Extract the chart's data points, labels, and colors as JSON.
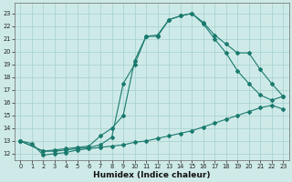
{
  "xlabel": "Humidex (Indice chaleur)",
  "bg_color": "#ceeae8",
  "grid_color": "#aad4d0",
  "line_color": "#1a7a6e",
  "line1_x": [
    0,
    1,
    2,
    3,
    4,
    5,
    6,
    7,
    8,
    9,
    10,
    11,
    12,
    13,
    14,
    15,
    16,
    17,
    18,
    19,
    20,
    21,
    22,
    23
  ],
  "line1_y": [
    13.0,
    12.8,
    11.9,
    12.0,
    12.1,
    12.3,
    12.4,
    12.5,
    12.6,
    12.7,
    12.9,
    13.0,
    13.2,
    13.4,
    13.6,
    13.8,
    14.1,
    14.4,
    14.7,
    15.0,
    15.3,
    15.6,
    15.8,
    15.5
  ],
  "line2_x": [
    0,
    2,
    3,
    4,
    5,
    6,
    7,
    8,
    9,
    10,
    11,
    12,
    13,
    14,
    15,
    16,
    17,
    18,
    19,
    20,
    21,
    22,
    23
  ],
  "line2_y": [
    13.0,
    12.2,
    12.3,
    12.4,
    12.5,
    12.6,
    13.4,
    14.0,
    15.0,
    19.3,
    21.2,
    21.3,
    22.5,
    22.8,
    23.0,
    22.2,
    21.0,
    19.9,
    18.5,
    17.5,
    16.6,
    16.2,
    16.5
  ],
  "line3_x": [
    0,
    2,
    3,
    4,
    5,
    6,
    7,
    8,
    9,
    10,
    11,
    12,
    13,
    14,
    15,
    16,
    17,
    18,
    19,
    20,
    21,
    22,
    23
  ],
  "line3_y": [
    13.0,
    12.2,
    12.2,
    12.3,
    12.4,
    12.5,
    12.7,
    13.3,
    17.5,
    19.0,
    21.2,
    21.2,
    22.5,
    22.8,
    23.0,
    22.3,
    21.3,
    20.6,
    19.9,
    19.9,
    18.6,
    17.5,
    16.5
  ],
  "xlim": [
    -0.5,
    23.5
  ],
  "ylim": [
    11.5,
    23.8
  ],
  "xticks": [
    0,
    1,
    2,
    3,
    4,
    5,
    6,
    7,
    8,
    9,
    10,
    11,
    12,
    13,
    14,
    15,
    16,
    17,
    18,
    19,
    20,
    21,
    22,
    23
  ],
  "yticks": [
    12,
    13,
    14,
    15,
    16,
    17,
    18,
    19,
    20,
    21,
    22,
    23
  ],
  "tick_fontsize": 4.8,
  "xlabel_fontsize": 6.5,
  "marker": "D",
  "markersize": 2.0,
  "linewidth": 0.8
}
